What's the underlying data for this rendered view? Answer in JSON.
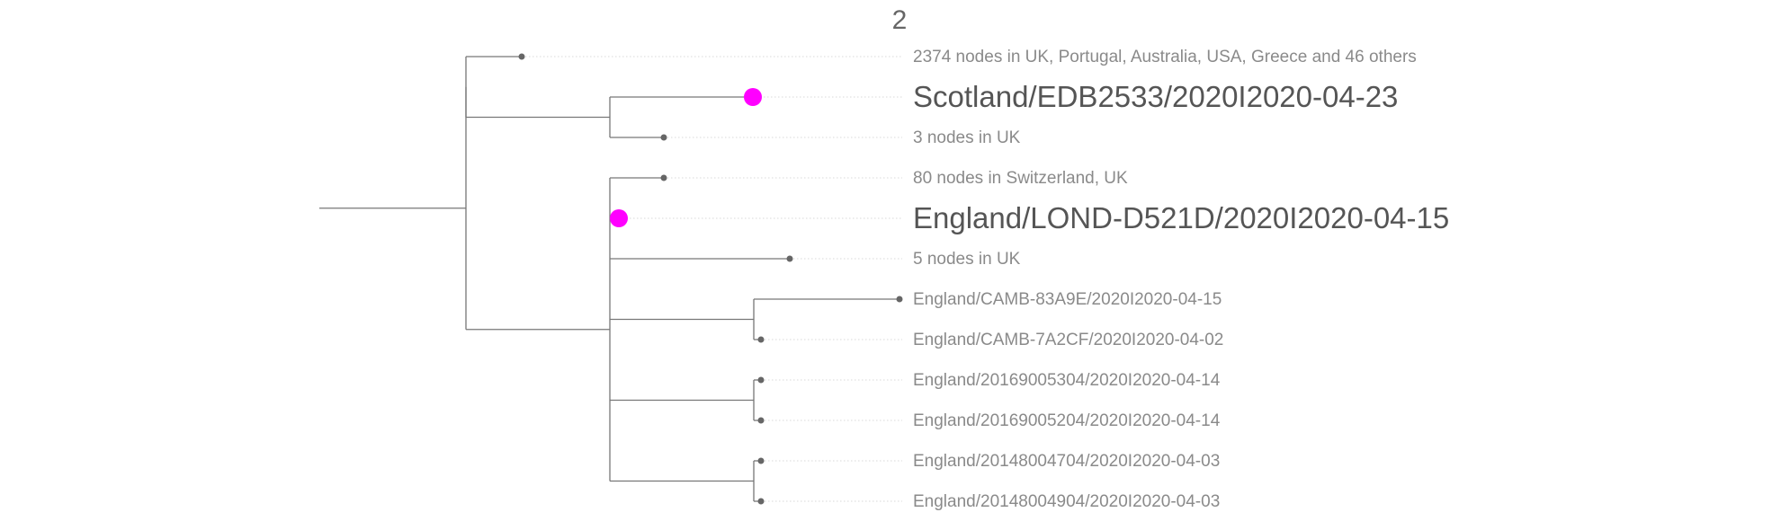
{
  "title": "2",
  "colors": {
    "branch": "#777777",
    "node": "#666666",
    "highlight": "#ff00ff",
    "label": "#8a8a8a",
    "label_highlight": "#555555"
  },
  "tips": [
    {
      "id": "t0",
      "label": "2374 nodes in UK, Portugal, Australia, USA, Greece and 46 others",
      "highlight": false
    },
    {
      "id": "t1",
      "label": "Scotland/EDB2533/2020I2020-04-23",
      "highlight": true
    },
    {
      "id": "t2",
      "label": "3 nodes in UK",
      "highlight": false
    },
    {
      "id": "t3",
      "label": "80 nodes in Switzerland, UK",
      "highlight": false
    },
    {
      "id": "t4",
      "label": "England/LOND-D521D/2020I2020-04-15",
      "highlight": true
    },
    {
      "id": "t5",
      "label": "5 nodes in UK",
      "highlight": false
    },
    {
      "id": "t6",
      "label": "England/CAMB-83A9E/2020I2020-04-15",
      "highlight": false
    },
    {
      "id": "t7",
      "label": "England/CAMB-7A2CF/2020I2020-04-02",
      "highlight": false
    },
    {
      "id": "t8",
      "label": "England/20169005304/2020I2020-04-14",
      "highlight": false
    },
    {
      "id": "t9",
      "label": "England/20169005204/2020I2020-04-14",
      "highlight": false
    },
    {
      "id": "t10",
      "label": "England/20148004704/2020I2020-04-03",
      "highlight": false
    },
    {
      "id": "t11",
      "label": "England/20148004904/2020I2020-04-03",
      "highlight": false
    }
  ]
}
